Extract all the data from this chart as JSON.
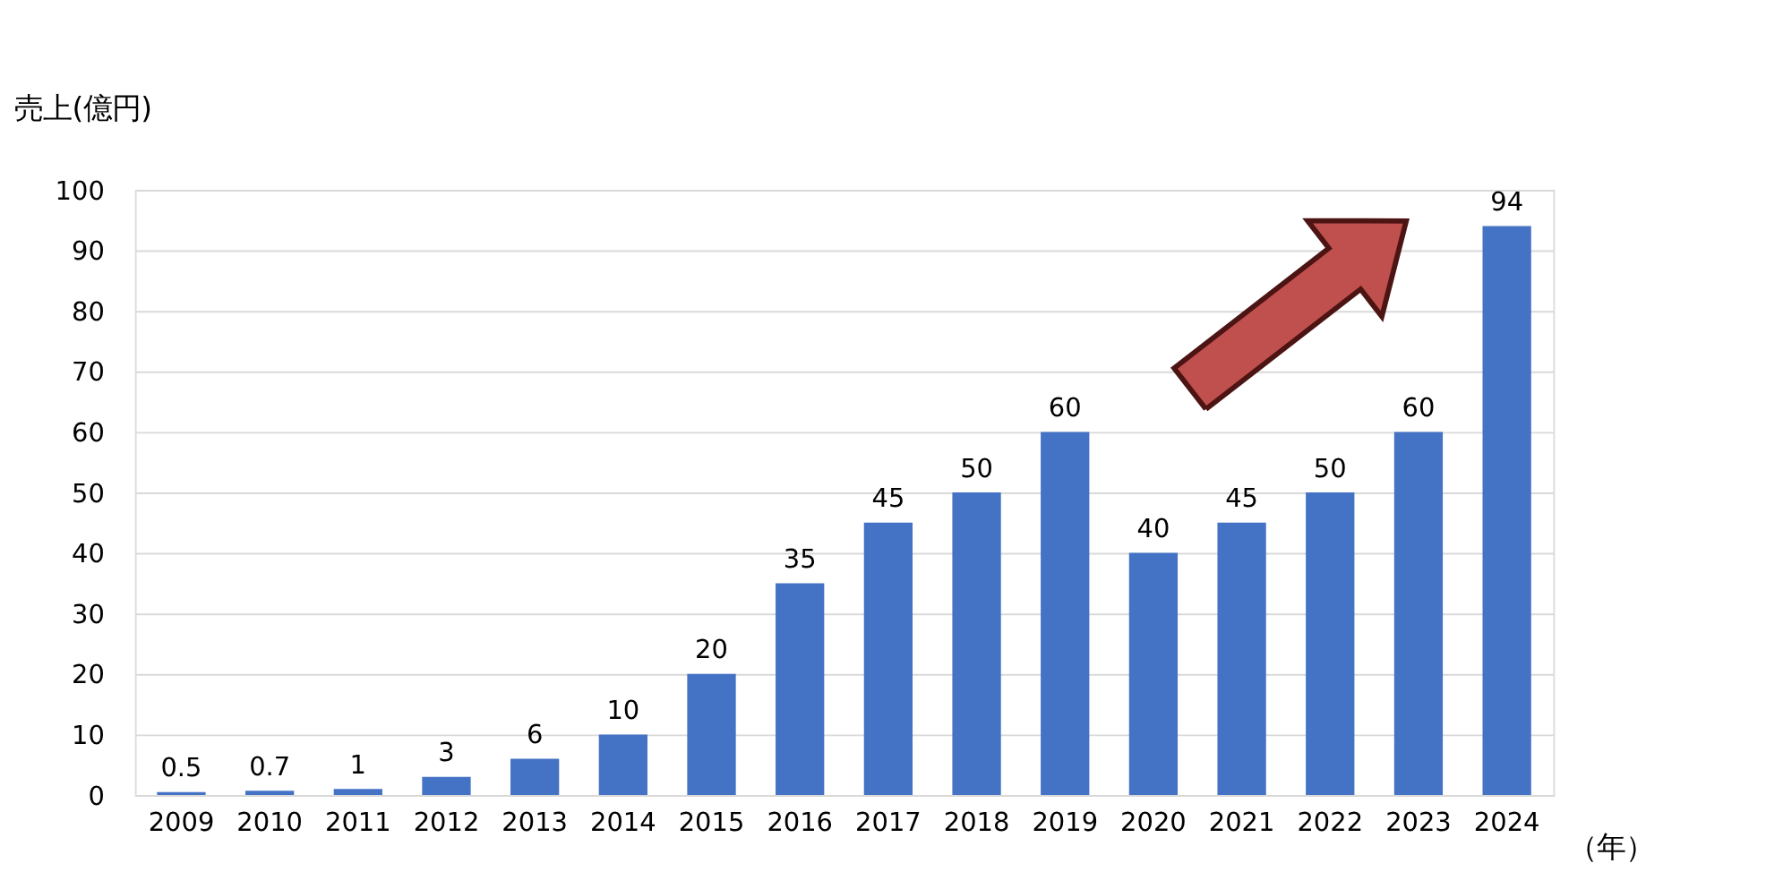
{
  "chart_data": {
    "type": "bar",
    "ylabel": "売上(億円)",
    "xlabel": "（年）",
    "categories": [
      "2009",
      "2010",
      "2011",
      "2012",
      "2013",
      "2014",
      "2015",
      "2016",
      "2017",
      "2018",
      "2019",
      "2020",
      "2021",
      "2022",
      "2023",
      "2024"
    ],
    "values": [
      0.5,
      0.7,
      1,
      3,
      6,
      10,
      20,
      35,
      45,
      50,
      60,
      40,
      45,
      50,
      60,
      94
    ],
    "color": "#4472c4",
    "ylim": [
      0,
      100
    ],
    "yticks": [
      0,
      10,
      20,
      30,
      40,
      50,
      60,
      70,
      80,
      90,
      100
    ],
    "grid": "y",
    "data_labels": true
  }
}
